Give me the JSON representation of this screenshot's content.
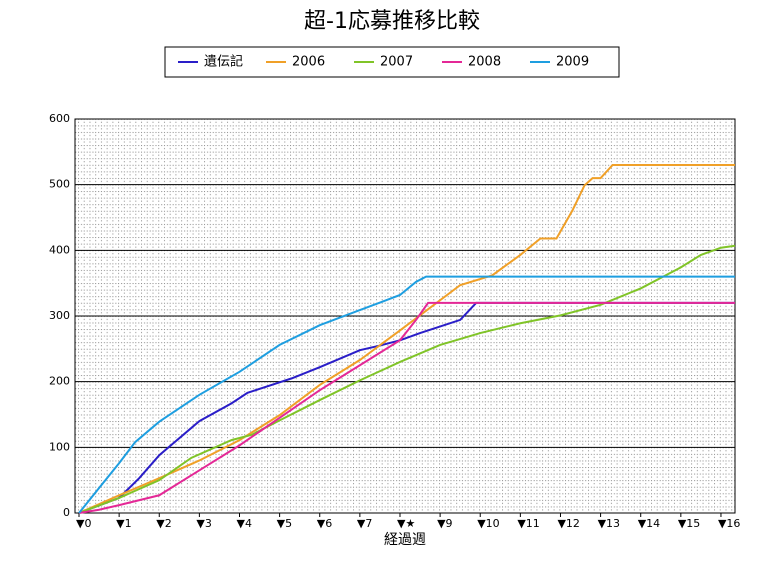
{
  "chart_data": {
    "type": "line",
    "title": "超-1応募推移比較",
    "x_label": "経過週",
    "xlim": [
      -0.1,
      16.35
    ],
    "ylim": [
      0,
      600
    ],
    "yticks": [
      0,
      100,
      200,
      300,
      400,
      500,
      600
    ],
    "xticks": [
      {
        "value": 0,
        "label": "▼0"
      },
      {
        "value": 1,
        "label": "▼1"
      },
      {
        "value": 2,
        "label": "▼2"
      },
      {
        "value": 3,
        "label": "▼3"
      },
      {
        "value": 4,
        "label": "▼4"
      },
      {
        "value": 5,
        "label": "▼5"
      },
      {
        "value": 6,
        "label": "▼6"
      },
      {
        "value": 7,
        "label": "▼7"
      },
      {
        "value": 8,
        "label": "▼★"
      },
      {
        "value": 9,
        "label": "▼9"
      },
      {
        "value": 10,
        "label": "▼10"
      },
      {
        "value": 11,
        "label": "▼11"
      },
      {
        "value": 12,
        "label": "▼12"
      },
      {
        "value": 13,
        "label": "▼13"
      },
      {
        "value": 14,
        "label": "▼14"
      },
      {
        "value": 15,
        "label": "▼15"
      },
      {
        "value": 16,
        "label": "▼16"
      }
    ],
    "grid": true,
    "series": [
      {
        "name": "遺伝記",
        "color": "#2a1ec8",
        "x": [
          0,
          1,
          1.5,
          2,
          3,
          3.8,
          4.2,
          5.3,
          6,
          7,
          7.5,
          8,
          8.5,
          9.5,
          9.9,
          16.35
        ],
        "values": [
          0,
          23,
          53,
          88,
          140,
          167,
          183,
          205,
          222,
          248,
          255,
          263,
          274,
          294,
          320,
          320
        ]
      },
      {
        "name": "2006",
        "color": "#f0a028",
        "x": [
          0,
          1,
          2,
          3,
          4,
          5,
          6,
          7,
          8,
          8.5,
          9.5,
          10.3,
          11,
          11.5,
          11.9,
          12.3,
          12.6,
          12.8,
          13,
          13.3,
          16.35
        ],
        "values": [
          0,
          27,
          53,
          80,
          111,
          149,
          195,
          233,
          278,
          301,
          347,
          362,
          393,
          418,
          418,
          461,
          499,
          510,
          510,
          530,
          530
        ]
      },
      {
        "name": "2007",
        "color": "#80c428",
        "x": [
          0,
          1,
          2,
          2.8,
          3.8,
          4.3,
          5,
          6,
          7,
          8,
          9,
          10,
          11,
          12,
          13,
          14,
          15,
          15.5,
          16,
          16.35
        ],
        "values": [
          0,
          23,
          50,
          84,
          111,
          119,
          141,
          172,
          202,
          230,
          256,
          274,
          289,
          301,
          317,
          342,
          374,
          393,
          404,
          407
        ]
      },
      {
        "name": "2008",
        "color": "#e42896",
        "x": [
          0,
          0.5,
          1,
          2,
          3,
          4,
          5,
          6,
          7,
          8,
          8.4,
          8.7,
          16.35
        ],
        "values": [
          0,
          5,
          12,
          27,
          65,
          103,
          145,
          187,
          225,
          263,
          294,
          320,
          320
        ]
      },
      {
        "name": "2009",
        "color": "#1e9ee0",
        "x": [
          0,
          0.5,
          1,
          1.4,
          2,
          3,
          4,
          5,
          6,
          7,
          8,
          8.4,
          8.65,
          16.35
        ],
        "values": [
          0,
          38,
          76,
          108,
          139,
          180,
          215,
          256,
          286,
          309,
          332,
          352,
          360,
          360
        ]
      }
    ]
  }
}
